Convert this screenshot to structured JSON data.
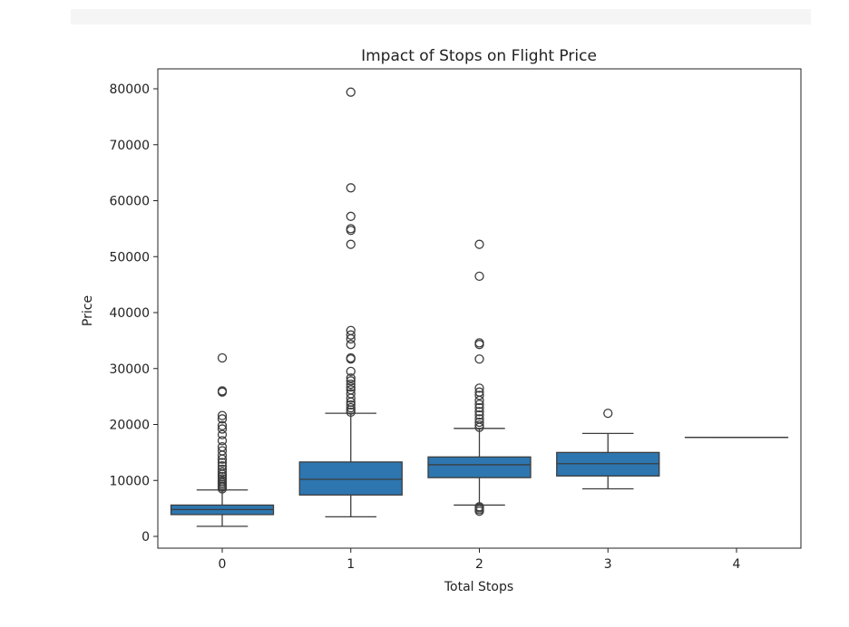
{
  "chart_data": {
    "type": "box",
    "title": "Impact of Stops on Flight Price",
    "xlabel": "Total Stops",
    "ylabel": "Price",
    "categories": [
      "0",
      "1",
      "2",
      "3",
      "4"
    ],
    "ylim": [
      -1000,
      82000
    ],
    "yticks": [
      0,
      10000,
      20000,
      30000,
      40000,
      50000,
      60000,
      70000,
      80000
    ],
    "box_color": "#2d76b0",
    "line_color": "#3d3d3d",
    "boxes": [
      {
        "category": "0",
        "whisker_low": 1800,
        "q1": 3900,
        "median": 4800,
        "q3": 5600,
        "whisker_high": 8300,
        "outliers": [
          8500,
          8800,
          9000,
          9300,
          9600,
          9900,
          10300,
          10700,
          11100,
          11500,
          12000,
          12600,
          13200,
          13800,
          14500,
          15300,
          16000,
          17100,
          18200,
          19200,
          19800,
          21000,
          21600,
          25800,
          26000,
          31900
        ]
      },
      {
        "category": "1",
        "whisker_low": 3500,
        "q1": 7400,
        "median": 10200,
        "q3": 13300,
        "whisker_high": 22000,
        "outliers": [
          22200,
          22600,
          23000,
          23500,
          24000,
          24700,
          25500,
          26200,
          26700,
          27200,
          27800,
          28300,
          29500,
          31700,
          31900,
          34300,
          35300,
          36000,
          36800,
          52200,
          54700,
          55000,
          57200,
          62300,
          79400
        ]
      },
      {
        "category": "2",
        "whisker_low": 5600,
        "q1": 10500,
        "median": 12800,
        "q3": 14200,
        "whisker_high": 19300,
        "outliers": [
          4500,
          4800,
          5100,
          5300,
          19500,
          19900,
          20400,
          21000,
          21700,
          22300,
          23000,
          23600,
          24300,
          25200,
          25800,
          26500,
          31700,
          34300,
          34600,
          46500,
          52200
        ]
      },
      {
        "category": "3",
        "whisker_low": 8500,
        "q1": 10800,
        "median": 13000,
        "q3": 15000,
        "whisker_high": 18400,
        "outliers": [
          22000
        ]
      },
      {
        "category": "4",
        "whisker_low": 17700,
        "q1": 17700,
        "median": 17700,
        "q3": 17700,
        "whisker_high": 17700,
        "outliers": []
      }
    ]
  }
}
